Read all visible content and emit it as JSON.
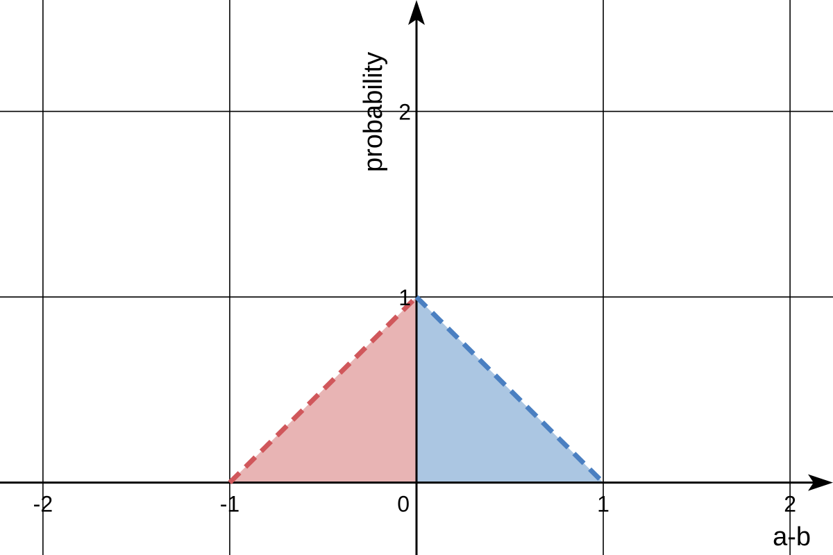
{
  "chart_data": {
    "type": "area",
    "xlabel": "a-b",
    "ylabel": "probability",
    "xlim": [
      -2.23,
      2.23
    ],
    "ylim": [
      -0.39,
      2.6
    ],
    "grid": true,
    "x_ticks": [
      {
        "value": -2,
        "label": "-2"
      },
      {
        "value": -1,
        "label": "-1"
      },
      {
        "value": 0,
        "label": "0"
      },
      {
        "value": 1,
        "label": "1"
      },
      {
        "value": 2,
        "label": "2"
      }
    ],
    "y_ticks": [
      {
        "value": 1,
        "label": "1"
      },
      {
        "value": 2,
        "label": "2"
      }
    ],
    "series": [
      {
        "x": [
          -1,
          0
        ],
        "y": [
          0,
          1
        ],
        "line_color": "#d0575b",
        "fill_color": "#e8b4b4",
        "line_style": "dashed"
      },
      {
        "x": [
          0,
          1
        ],
        "y": [
          1,
          0
        ],
        "line_color": "#4a7fc1",
        "fill_color": "#abc6e2",
        "line_style": "dashed"
      }
    ]
  }
}
